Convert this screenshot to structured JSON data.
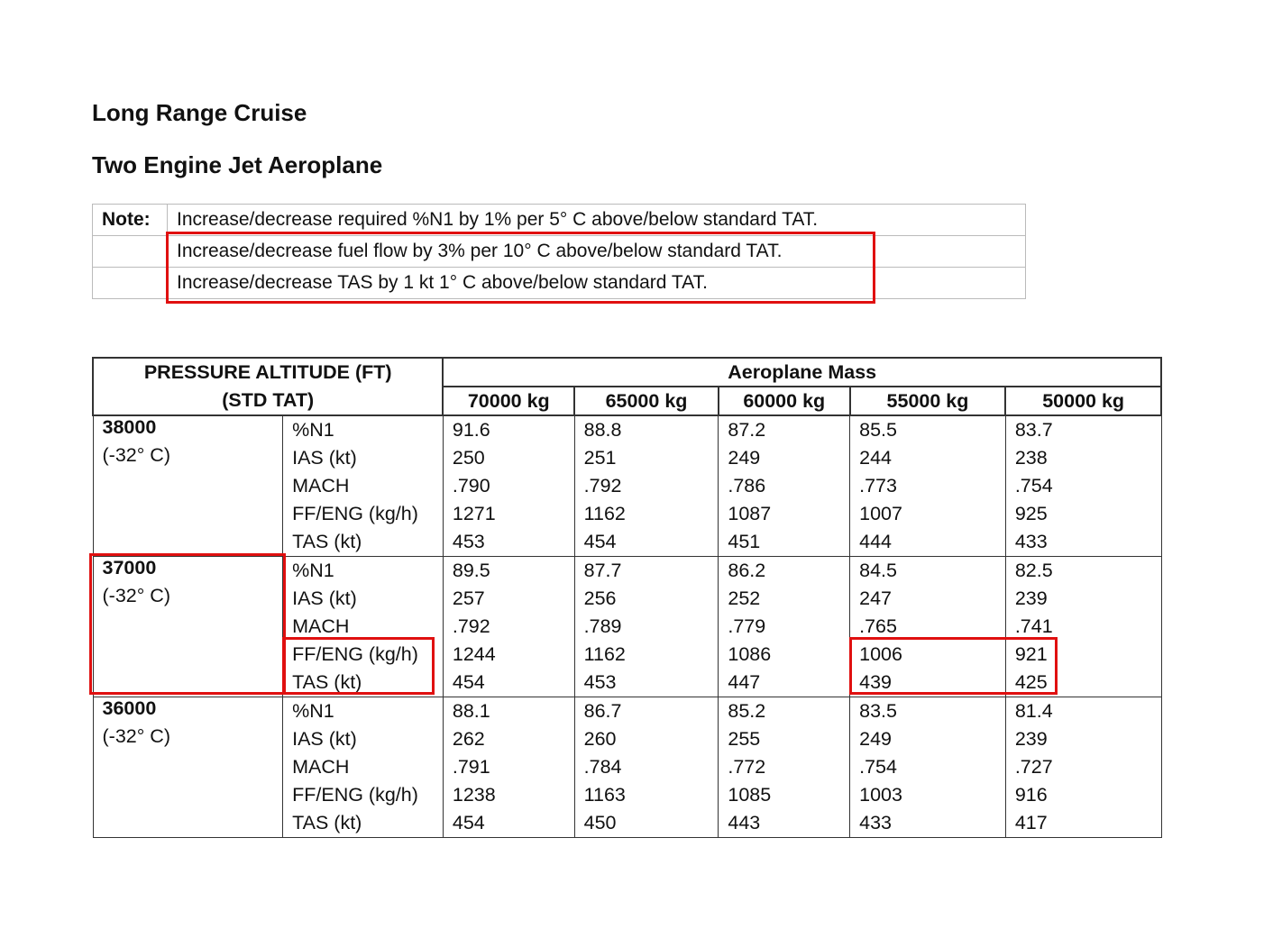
{
  "title": "Long Range Cruise",
  "subtitle": "Two Engine Jet Aeroplane",
  "notes": {
    "label": "Note:",
    "lines": [
      "Increase/decrease required %N1 by 1% per 5° C above/below standard TAT.",
      "Increase/decrease fuel flow by 3% per 10° C above/below standard TAT.",
      "Increase/decrease TAS by 1 kt 1° C above/below standard TAT."
    ]
  },
  "table": {
    "header_left_1": "PRESSURE ALTITUDE (FT)",
    "header_left_2": "(STD TAT)",
    "header_mass": "Aeroplane Mass",
    "mass_columns": [
      "70000 kg",
      "65000 kg",
      "60000 kg",
      "55000 kg",
      "50000 kg"
    ],
    "groups": [
      {
        "altitude": "38000",
        "temp": "(-32° C)",
        "rows": [
          {
            "param": "%N1",
            "values": [
              "91.6",
              "88.8",
              "87.2",
              "85.5",
              "83.7"
            ]
          },
          {
            "param": "IAS (kt)",
            "values": [
              "250",
              "251",
              "249",
              "244",
              "238"
            ]
          },
          {
            "param": "MACH",
            "values": [
              ".790",
              ".792",
              ".786",
              ".773",
              ".754"
            ]
          },
          {
            "param": "FF/ENG (kg/h)",
            "values": [
              "1271",
              "1162",
              "1087",
              "1007",
              "925"
            ]
          },
          {
            "param": "TAS (kt)",
            "values": [
              "453",
              "454",
              "451",
              "444",
              "433"
            ]
          }
        ]
      },
      {
        "altitude": "37000",
        "temp": "(-32° C)",
        "rows": [
          {
            "param": "%N1",
            "values": [
              "89.5",
              "87.7",
              "86.2",
              "84.5",
              "82.5"
            ]
          },
          {
            "param": "IAS (kt)",
            "values": [
              "257",
              "256",
              "252",
              "247",
              "239"
            ]
          },
          {
            "param": "MACH",
            "values": [
              ".792",
              ".789",
              ".779",
              ".765",
              ".741"
            ]
          },
          {
            "param": "FF/ENG (kg/h)",
            "values": [
              "1244",
              "1162",
              "1086",
              "1006",
              "921"
            ]
          },
          {
            "param": "TAS (kt)",
            "values": [
              "454",
              "453",
              "447",
              "439",
              "425"
            ]
          }
        ]
      },
      {
        "altitude": "36000",
        "temp": "(-32° C)",
        "rows": [
          {
            "param": "%N1",
            "values": [
              "88.1",
              "86.7",
              "85.2",
              "83.5",
              "81.4"
            ]
          },
          {
            "param": "IAS (kt)",
            "values": [
              "262",
              "260",
              "255",
              "249",
              "239"
            ]
          },
          {
            "param": "MACH",
            "values": [
              ".791",
              ".784",
              ".772",
              ".754",
              ".727"
            ]
          },
          {
            "param": "FF/ENG (kg/h)",
            "values": [
              "1238",
              "1163",
              "1085",
              "1003",
              "916"
            ]
          },
          {
            "param": "TAS (kt)",
            "values": [
              "454",
              "450",
              "443",
              "433",
              "417"
            ]
          }
        ]
      }
    ]
  },
  "highlight_color": "#e01010"
}
